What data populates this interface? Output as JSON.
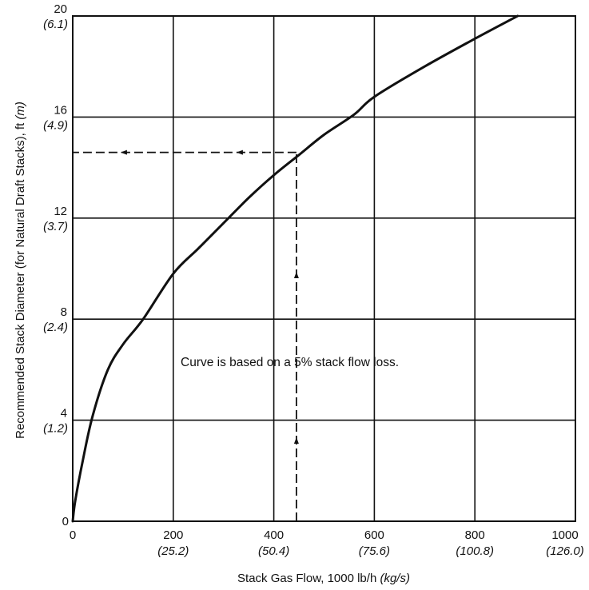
{
  "chart_data": {
    "type": "line",
    "title": "",
    "annotation": "Curve is based on a 5% stack flow loss.",
    "xlabel": {
      "main": "Stack Gas Flow,  1000 lb/h ",
      "unit": "(kg/s)"
    },
    "ylabel": {
      "main": "Recommended Stack Diameter  (for Natural Draft Stacks),  ft ",
      "unit": "(m)"
    },
    "xlim": [
      0,
      1000
    ],
    "ylim": [
      0,
      20
    ],
    "grid": true,
    "x_ticks": [
      {
        "value": 0,
        "label": "0",
        "metric": ""
      },
      {
        "value": 200,
        "label": "200",
        "metric": "(25.2)"
      },
      {
        "value": 400,
        "label": "400",
        "metric": "(50.4)"
      },
      {
        "value": 600,
        "label": "600",
        "metric": "(75.6)"
      },
      {
        "value": 800,
        "label": "800",
        "metric": "(100.8)"
      },
      {
        "value": 1000,
        "label": "1000",
        "metric": "(126.0)"
      }
    ],
    "y_ticks": [
      {
        "value": 0,
        "label": "0",
        "metric": ""
      },
      {
        "value": 4,
        "label": "4",
        "metric": "(1.2)"
      },
      {
        "value": 8,
        "label": "8",
        "metric": "(2.4)"
      },
      {
        "value": 12,
        "label": "12",
        "metric": "(3.7)"
      },
      {
        "value": 16,
        "label": "16",
        "metric": "(4.9)"
      },
      {
        "value": 20,
        "label": "20",
        "metric": "(6.1)"
      }
    ],
    "series": [
      {
        "x": [
          0,
          5,
          20,
          40,
          70,
          100,
          140,
          200,
          250,
          300,
          350,
          400,
          450,
          500,
          560,
          600,
          700,
          800,
          885
        ],
        "y": [
          0,
          0.8,
          2.4,
          4.2,
          6.0,
          7.0,
          8.0,
          9.8,
          10.8,
          11.8,
          12.8,
          13.7,
          14.5,
          15.3,
          16.1,
          16.8,
          18.0,
          19.1,
          20.0
        ]
      }
    ],
    "example": {
      "x": 445,
      "y": 14.6,
      "style": "dashed"
    }
  }
}
